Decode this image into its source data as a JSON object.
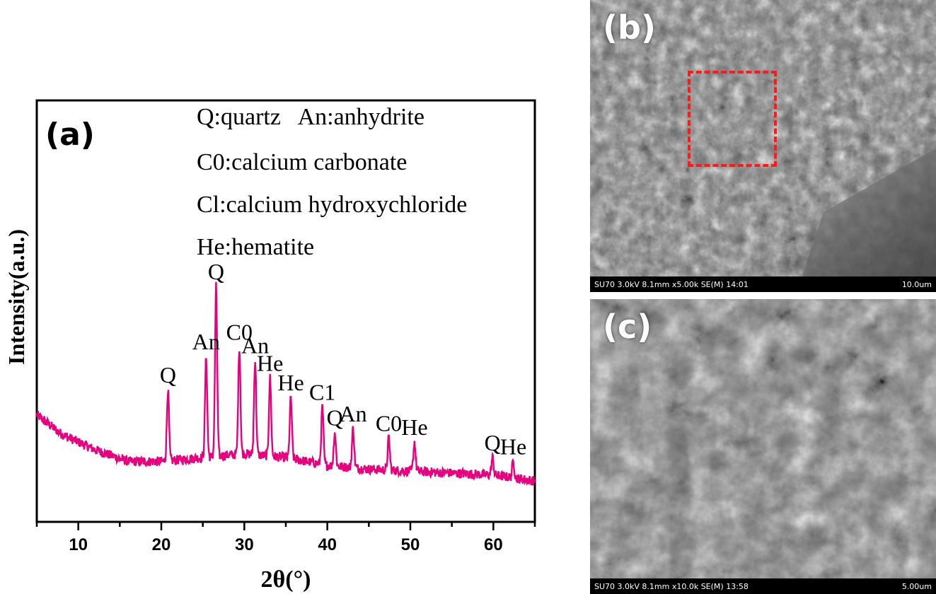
{
  "colors": {
    "trace": "#e6007e",
    "roi": "#ff1a1a"
  },
  "chart_data": {
    "type": "line",
    "panel_label": "(a)",
    "xlabel": "2θ(°)",
    "ylabel": "Intensity(a.u.)",
    "xlim": [
      5,
      65
    ],
    "x_ticks": [
      "10",
      "20",
      "30",
      "40",
      "50",
      "60"
    ],
    "legend": [
      "Q:quartz   An:anhydrite",
      "C0:calcium carbonate",
      "Cl:calcium hydroxychloride",
      "He:hematite"
    ],
    "baseline": [
      [
        5,
        0.34
      ],
      [
        8,
        0.24
      ],
      [
        12,
        0.16
      ],
      [
        16,
        0.1
      ],
      [
        20,
        0.1
      ],
      [
        25,
        0.12
      ],
      [
        30,
        0.14
      ],
      [
        35,
        0.12
      ],
      [
        40,
        0.08
      ],
      [
        45,
        0.06
      ],
      [
        50,
        0.05
      ],
      [
        55,
        0.04
      ],
      [
        60,
        0.03
      ],
      [
        65,
        0.0
      ]
    ],
    "peaks": [
      {
        "x": 20.8,
        "height": 0.47,
        "label": "Q"
      },
      {
        "x": 25.4,
        "height": 0.64,
        "label": "An"
      },
      {
        "x": 26.6,
        "height": 1.0,
        "label": "Q"
      },
      {
        "x": 29.4,
        "height": 0.69,
        "label": "C0"
      },
      {
        "x": 31.3,
        "height": 0.62,
        "label": "An"
      },
      {
        "x": 33.1,
        "height": 0.53,
        "label": "He"
      },
      {
        "x": 35.6,
        "height": 0.43,
        "label": "He"
      },
      {
        "x": 39.4,
        "height": 0.38,
        "label": "C1"
      },
      {
        "x": 40.9,
        "height": 0.25,
        "label": "Q"
      },
      {
        "x": 43.1,
        "height": 0.27,
        "label": "An"
      },
      {
        "x": 47.4,
        "height": 0.22,
        "label": "C0"
      },
      {
        "x": 50.5,
        "height": 0.2,
        "label": "He"
      },
      {
        "x": 59.9,
        "height": 0.12,
        "label": "Q"
      },
      {
        "x": 62.4,
        "height": 0.1,
        "label": "He"
      }
    ]
  },
  "sem_b": {
    "label": "(b)",
    "info": "SU70 3.0kV 8.1mm x5.00k SE(M) 14:01",
    "scale": "10.0um"
  },
  "sem_c": {
    "label": "(c)",
    "info": "SU70 3.0kV 8.1mm x10.0k SE(M) 13:58",
    "scale": "5.00um"
  }
}
